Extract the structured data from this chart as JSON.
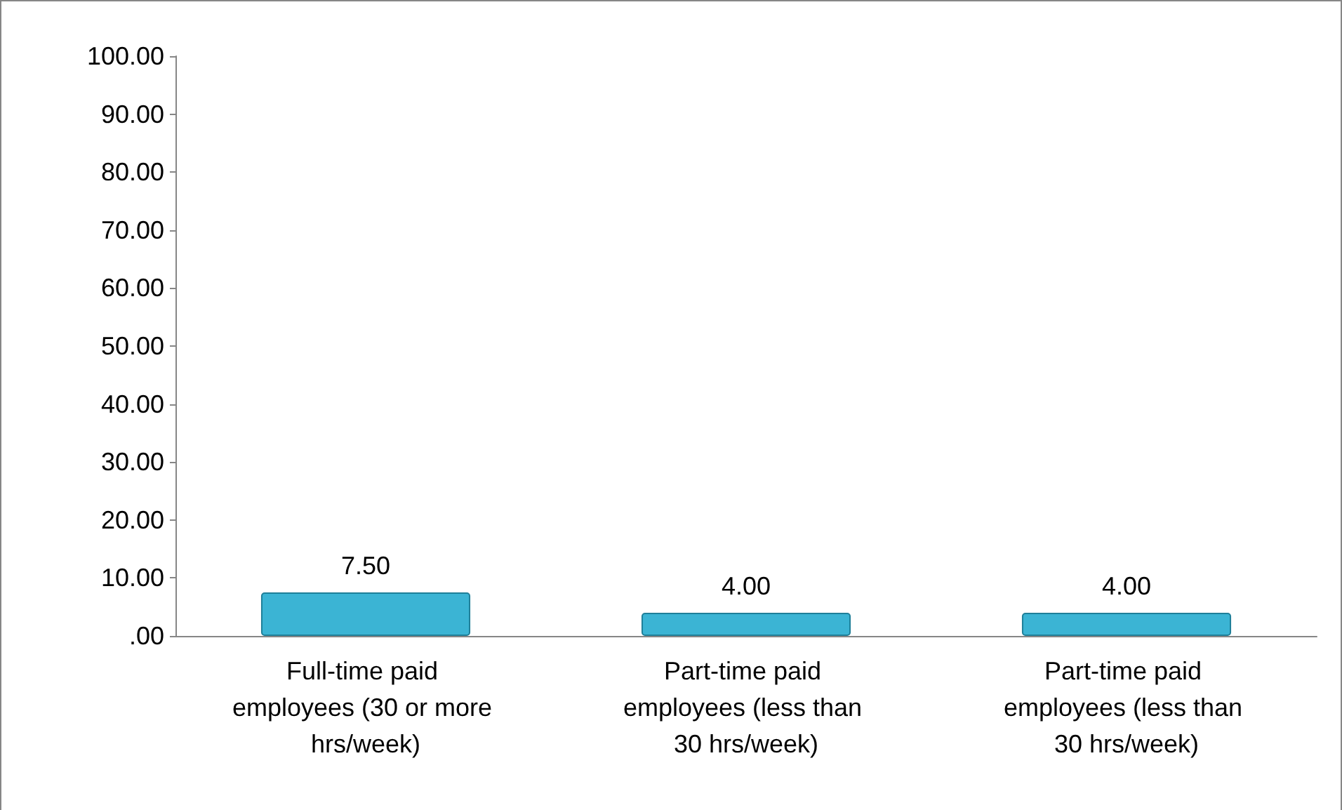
{
  "chart_data": {
    "type": "bar",
    "categories": [
      "Full-time paid employees (30 or more hrs/week)",
      "Part-time paid employees (less than 30 hrs/week)",
      "Part-time paid employees (less than 30 hrs/week)"
    ],
    "values": [
      7.5,
      4,
      4
    ],
    "color": "#3bb4d4",
    "value_labels": [
      "7.50",
      "4.00",
      "4.00"
    ],
    "ylim": [
      0,
      100
    ],
    "yticks": [
      {
        "value": 0,
        "label": ".00"
      },
      {
        "value": 10,
        "label": "10.00"
      },
      {
        "value": 20,
        "label": "20.00"
      },
      {
        "value": 30,
        "label": "30.00"
      },
      {
        "value": 40,
        "label": "40.00"
      },
      {
        "value": 50,
        "label": "50.00"
      },
      {
        "value": 60,
        "label": "60.00"
      },
      {
        "value": 70,
        "label": "70.00"
      },
      {
        "value": 80,
        "label": "80.00"
      },
      {
        "value": 90,
        "label": "90.00"
      },
      {
        "value": 100,
        "label": "100.00"
      }
    ],
    "grid": false
  }
}
